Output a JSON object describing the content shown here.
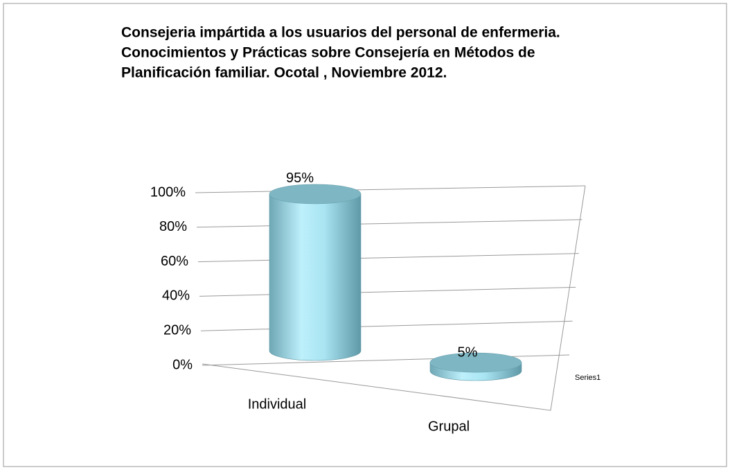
{
  "chart_data": {
    "type": "bar3d",
    "title": [
      "Consejeria impártida a los usuarios del personal de enfermeria.",
      "Conocimientos  y Prácticas sobre Consejería en Métodos de",
      "Planificación familiar. Ocotal , Noviembre 2012."
    ],
    "categories": [
      "Individual",
      "Grupal"
    ],
    "series": [
      {
        "name": "Series1",
        "color": "#9ed8e6",
        "values": [
          95,
          5
        ],
        "value_labels": [
          "95%",
          "5%"
        ]
      }
    ],
    "ylim": [
      0,
      100
    ],
    "yticks": [
      {
        "value": 0,
        "label": "0%"
      },
      {
        "value": 20,
        "label": "20%"
      },
      {
        "value": 40,
        "label": "40%"
      },
      {
        "value": 60,
        "label": "60%"
      },
      {
        "value": 80,
        "label": "80%"
      },
      {
        "value": 100,
        "label": "100%"
      }
    ],
    "grid": true,
    "legend": "right"
  }
}
